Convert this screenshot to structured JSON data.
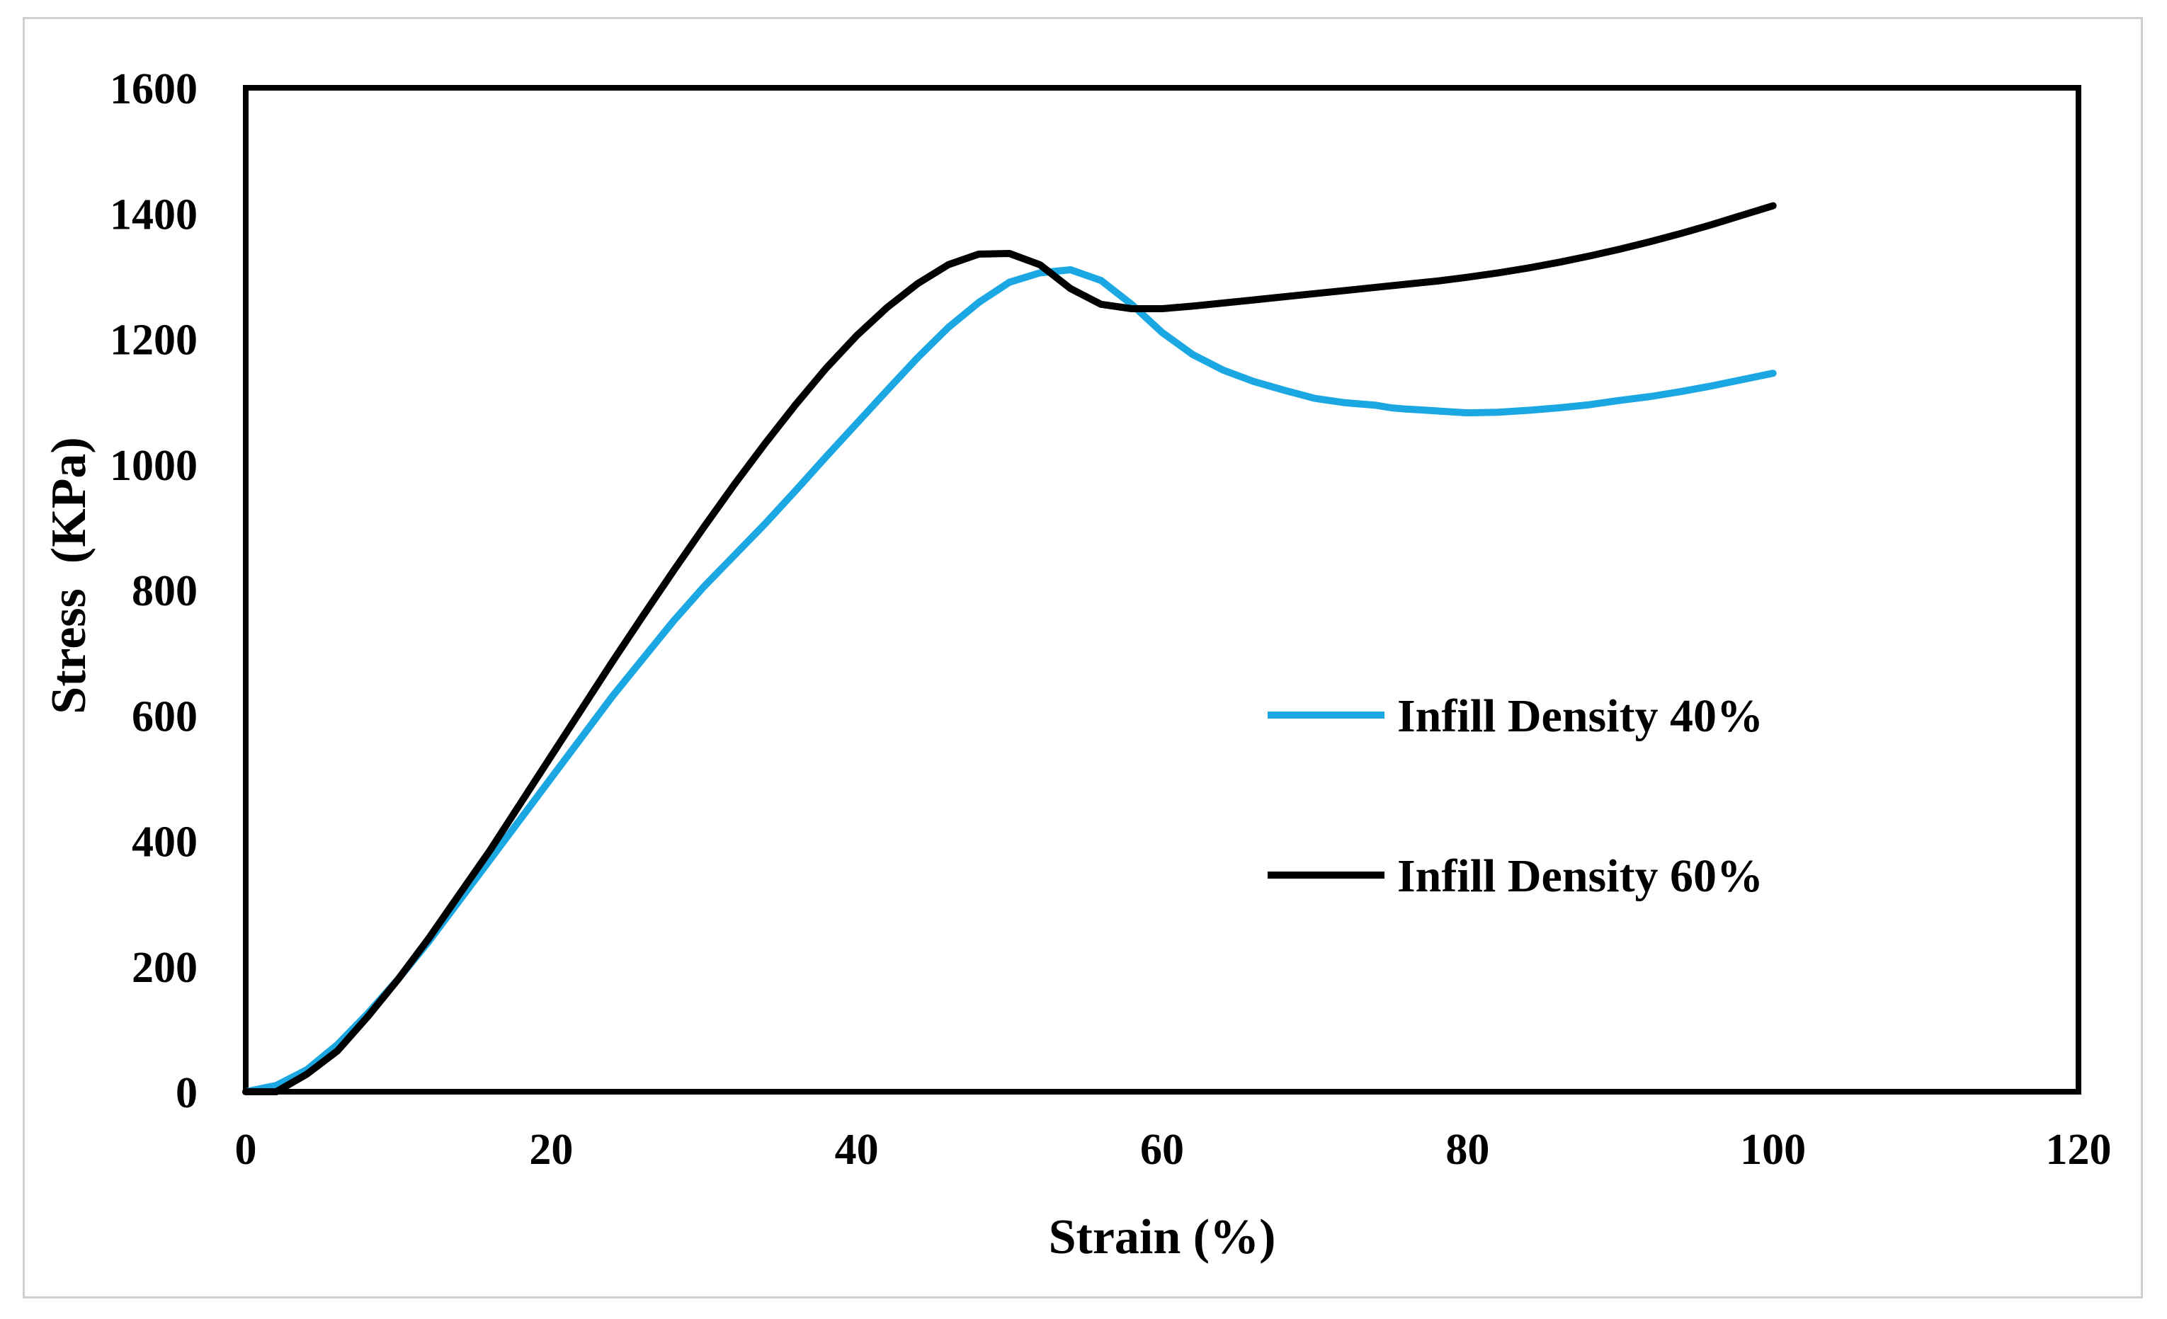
{
  "chart_data": {
    "type": "line",
    "title": "",
    "xlabel": "Strain (%)",
    "ylabel": "Stress  (KPa)",
    "xlim": [
      0,
      120
    ],
    "ylim": [
      0,
      1600
    ],
    "xticks": [
      "0",
      "20",
      "40",
      "60",
      "80",
      "100",
      "120"
    ],
    "yticks": [
      "0",
      "200",
      "400",
      "600",
      "800",
      "1000",
      "1200",
      "1400",
      "1600"
    ],
    "grid": false,
    "legend_position": "right",
    "series": [
      {
        "name": "Infill Density 40%",
        "color": "#1aa7e2",
        "x": [
          0,
          2,
          4,
          6,
          8,
          10,
          12,
          14,
          16,
          18,
          20,
          22,
          24,
          26,
          28,
          30,
          32,
          34,
          36,
          38,
          40,
          42,
          44,
          46,
          48,
          50,
          52,
          54,
          56,
          58,
          60,
          62,
          64,
          66,
          68,
          70,
          72,
          74,
          75,
          76,
          78,
          80,
          82,
          84,
          86,
          88,
          90,
          92,
          94,
          96,
          98,
          100
        ],
        "y": [
          0,
          10,
          35,
          75,
          125,
          180,
          240,
          305,
          370,
          435,
          500,
          565,
          630,
          690,
          750,
          805,
          855,
          905,
          958,
          1012,
          1065,
          1118,
          1170,
          1218,
          1258,
          1290,
          1305,
          1310,
          1293,
          1255,
          1210,
          1175,
          1150,
          1132,
          1118,
          1105,
          1098,
          1094,
          1090,
          1088,
          1085,
          1082,
          1083,
          1086,
          1090,
          1095,
          1102,
          1108,
          1116,
          1125,
          1135,
          1145
        ]
      },
      {
        "name": "Infill Density 60%",
        "color": "#000000",
        "x": [
          0,
          2,
          4,
          6,
          8,
          10,
          12,
          14,
          16,
          18,
          20,
          22,
          24,
          26,
          28,
          30,
          32,
          34,
          36,
          38,
          40,
          42,
          44,
          46,
          48,
          50,
          52,
          54,
          56,
          58,
          60,
          62,
          64,
          66,
          68,
          70,
          72,
          74,
          76,
          78,
          80,
          82,
          84,
          86,
          88,
          90,
          92,
          94,
          96,
          98,
          100
        ],
        "y": [
          0,
          0,
          28,
          65,
          120,
          180,
          245,
          315,
          385,
          460,
          535,
          610,
          685,
          758,
          830,
          900,
          968,
          1033,
          1095,
          1153,
          1205,
          1250,
          1288,
          1318,
          1335,
          1336,
          1318,
          1280,
          1255,
          1248,
          1248,
          1252,
          1257,
          1262,
          1267,
          1272,
          1277,
          1282,
          1287,
          1292,
          1298,
          1305,
          1313,
          1322,
          1332,
          1343,
          1355,
          1368,
          1382,
          1397,
          1412
        ]
      }
    ]
  }
}
